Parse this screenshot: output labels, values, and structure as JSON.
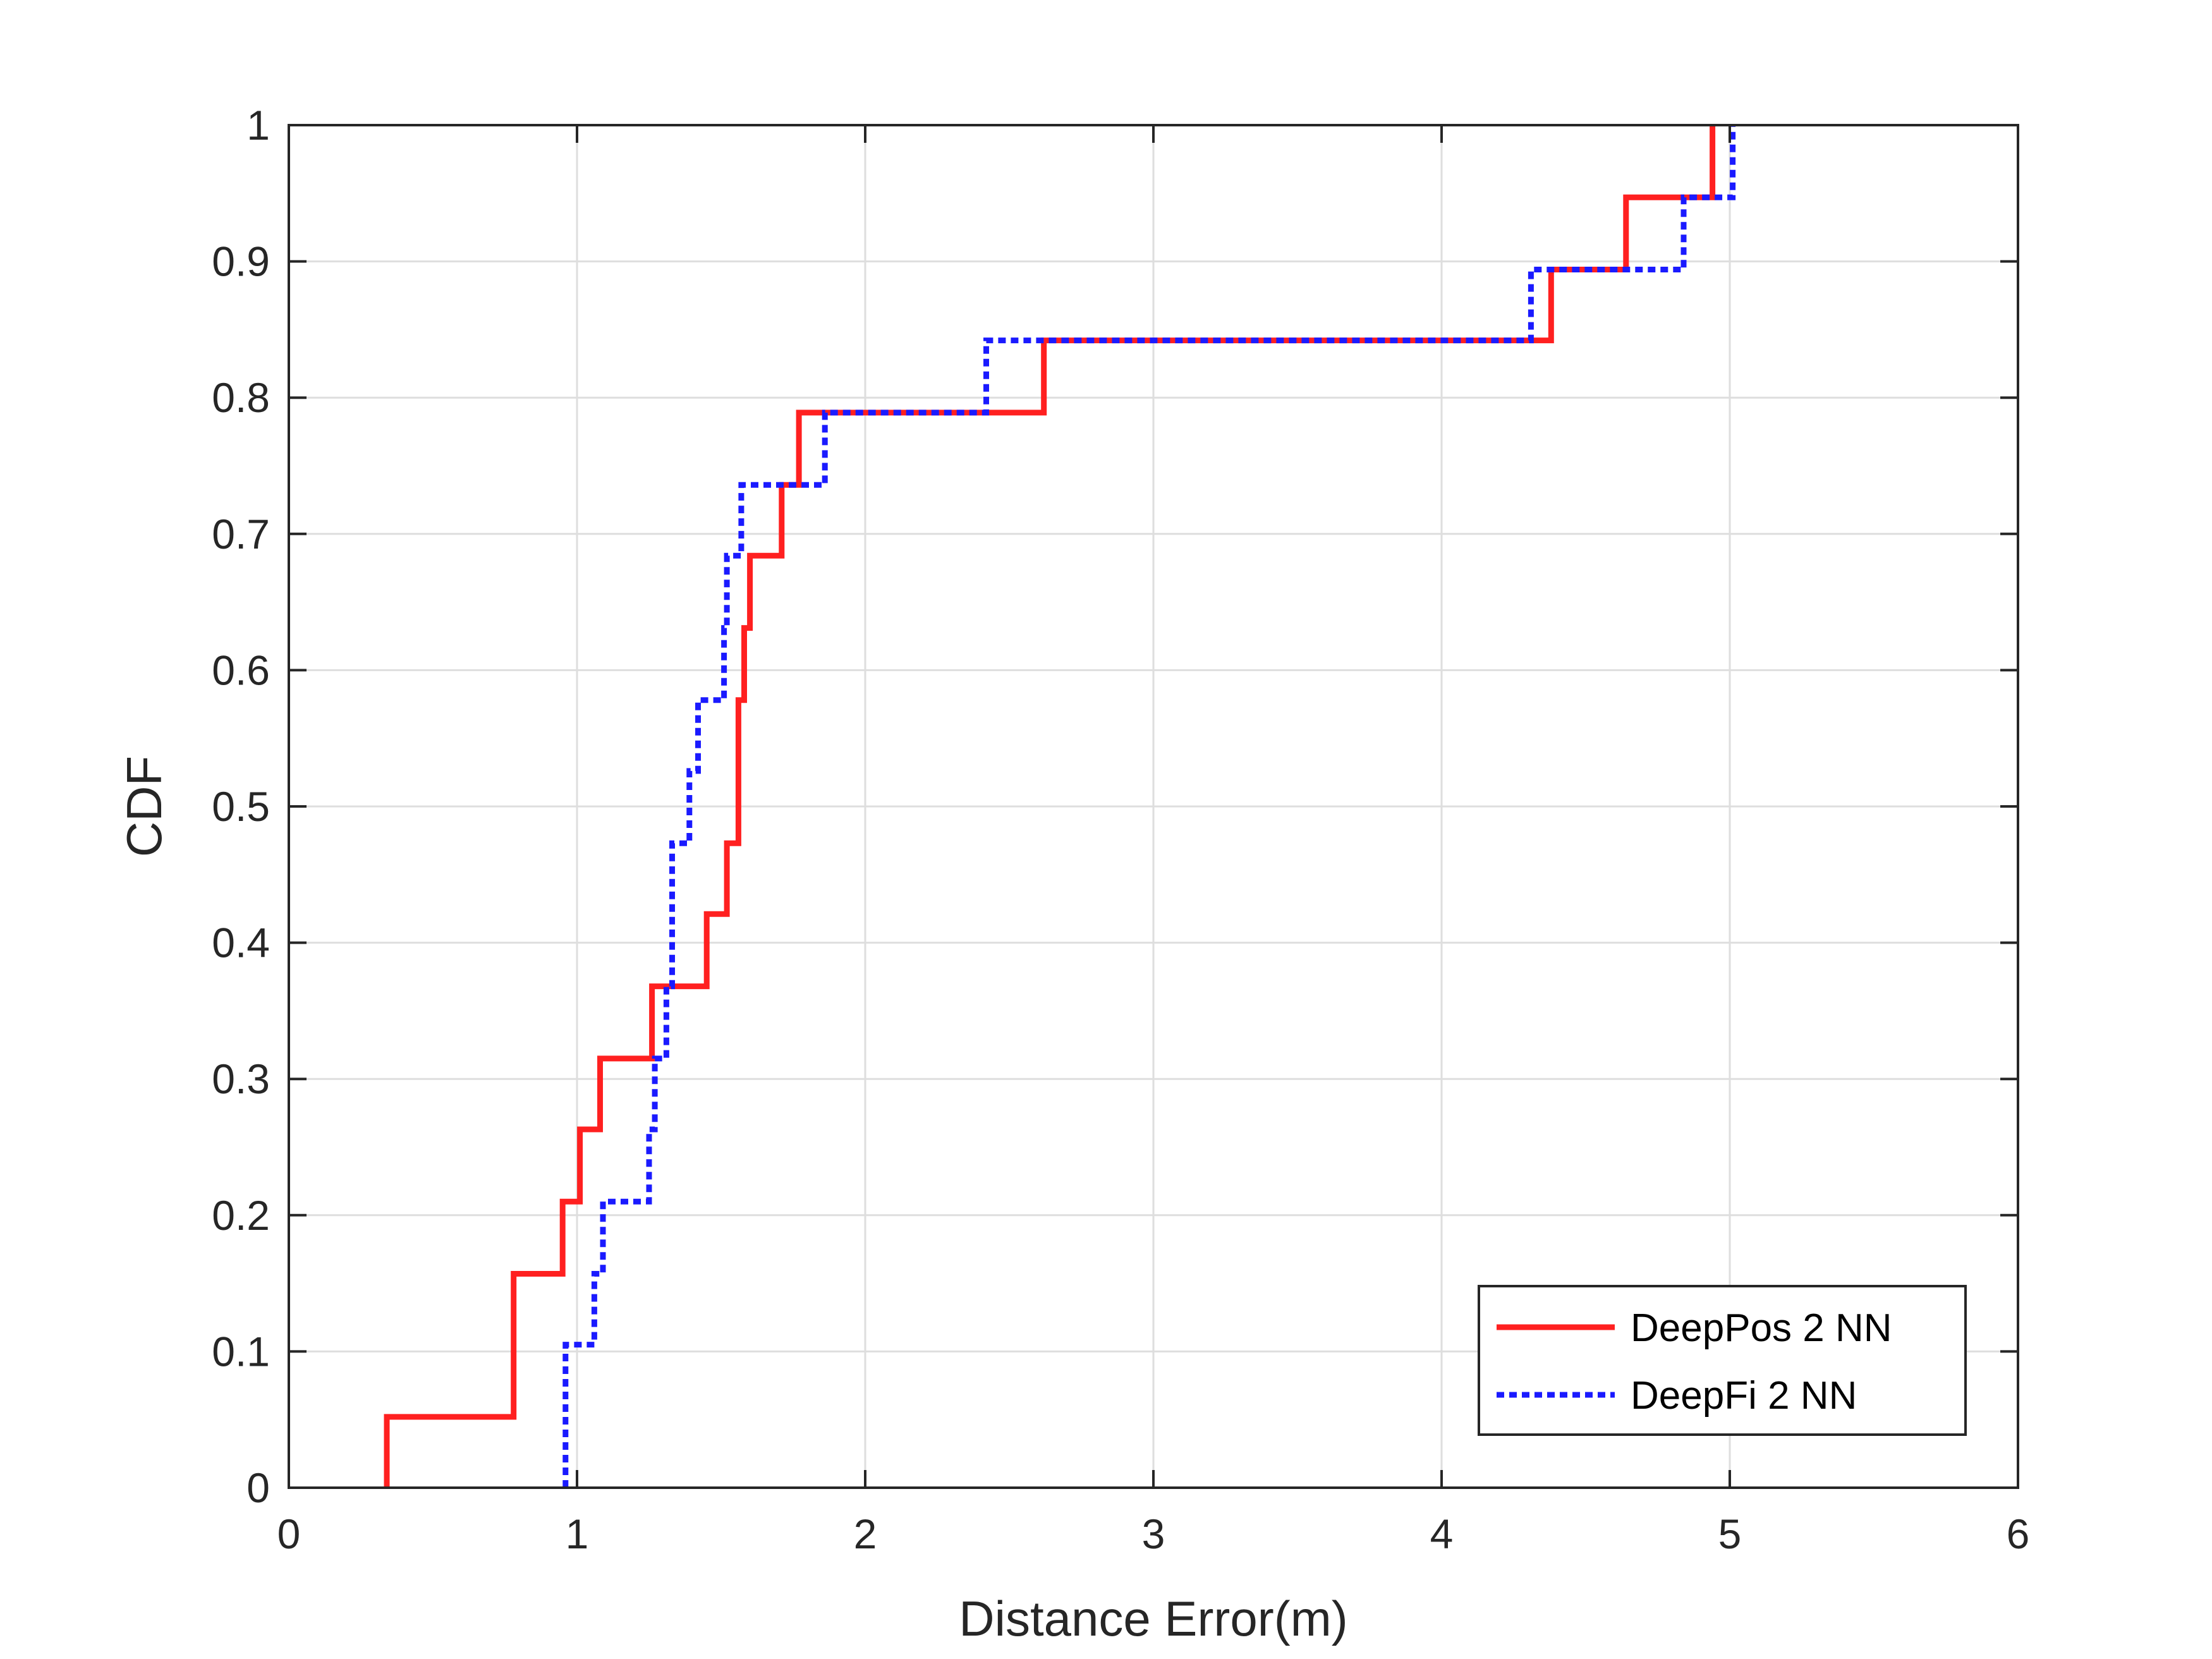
{
  "chart_data": {
    "type": "line",
    "step": true,
    "title": "",
    "xlabel": "Distance Error(m)",
    "ylabel": "CDF",
    "xlim": [
      0,
      6
    ],
    "ylim": [
      0,
      1
    ],
    "xticks": [
      "0",
      "1",
      "2",
      "3",
      "4",
      "5",
      "6"
    ],
    "yticks": [
      "0",
      "0.1",
      "0.2",
      "0.3",
      "0.4",
      "0.5",
      "0.6",
      "0.7",
      "0.8",
      "0.9",
      "1"
    ],
    "grid": true,
    "legend_position": "bottom-right",
    "series": [
      {
        "name": "DeepPos 2 NN",
        "color": "#ff2020",
        "style": "solid",
        "points": [
          [
            0.34,
            0
          ],
          [
            0.34,
            0.052
          ],
          [
            0.78,
            0.052
          ],
          [
            0.78,
            0.157
          ],
          [
            0.95,
            0.157
          ],
          [
            0.95,
            0.21
          ],
          [
            1.01,
            0.21
          ],
          [
            1.01,
            0.263
          ],
          [
            1.08,
            0.263
          ],
          [
            1.08,
            0.315
          ],
          [
            1.26,
            0.315
          ],
          [
            1.26,
            0.368
          ],
          [
            1.45,
            0.368
          ],
          [
            1.45,
            0.421
          ],
          [
            1.52,
            0.421
          ],
          [
            1.52,
            0.473
          ],
          [
            1.56,
            0.473
          ],
          [
            1.56,
            0.578
          ],
          [
            1.58,
            0.578
          ],
          [
            1.58,
            0.631
          ],
          [
            1.6,
            0.631
          ],
          [
            1.6,
            0.684
          ],
          [
            1.71,
            0.684
          ],
          [
            1.71,
            0.736
          ],
          [
            1.77,
            0.736
          ],
          [
            1.77,
            0.789
          ],
          [
            2.62,
            0.789
          ],
          [
            2.62,
            0.842
          ],
          [
            4.38,
            0.842
          ],
          [
            4.38,
            0.894
          ],
          [
            4.64,
            0.894
          ],
          [
            4.64,
            0.947
          ],
          [
            4.94,
            0.947
          ],
          [
            4.94,
            1.0
          ]
        ]
      },
      {
        "name": "DeepFi 2 NN",
        "color": "#1a1aff",
        "style": "dotted",
        "points": [
          [
            0.96,
            0
          ],
          [
            0.96,
            0.105
          ],
          [
            1.06,
            0.105
          ],
          [
            1.06,
            0.157
          ],
          [
            1.09,
            0.157
          ],
          [
            1.09,
            0.21
          ],
          [
            1.25,
            0.21
          ],
          [
            1.25,
            0.263
          ],
          [
            1.27,
            0.263
          ],
          [
            1.27,
            0.315
          ],
          [
            1.31,
            0.315
          ],
          [
            1.31,
            0.368
          ],
          [
            1.33,
            0.368
          ],
          [
            1.33,
            0.473
          ],
          [
            1.39,
            0.473
          ],
          [
            1.39,
            0.526
          ],
          [
            1.42,
            0.526
          ],
          [
            1.42,
            0.578
          ],
          [
            1.51,
            0.578
          ],
          [
            1.51,
            0.631
          ],
          [
            1.52,
            0.631
          ],
          [
            1.52,
            0.684
          ],
          [
            1.57,
            0.684
          ],
          [
            1.57,
            0.736
          ],
          [
            1.86,
            0.736
          ],
          [
            1.86,
            0.789
          ],
          [
            2.42,
            0.789
          ],
          [
            2.42,
            0.842
          ],
          [
            4.31,
            0.842
          ],
          [
            4.31,
            0.894
          ],
          [
            4.84,
            0.894
          ],
          [
            4.84,
            0.947
          ],
          [
            5.01,
            0.947
          ],
          [
            5.01,
            1.0
          ]
        ]
      }
    ]
  }
}
